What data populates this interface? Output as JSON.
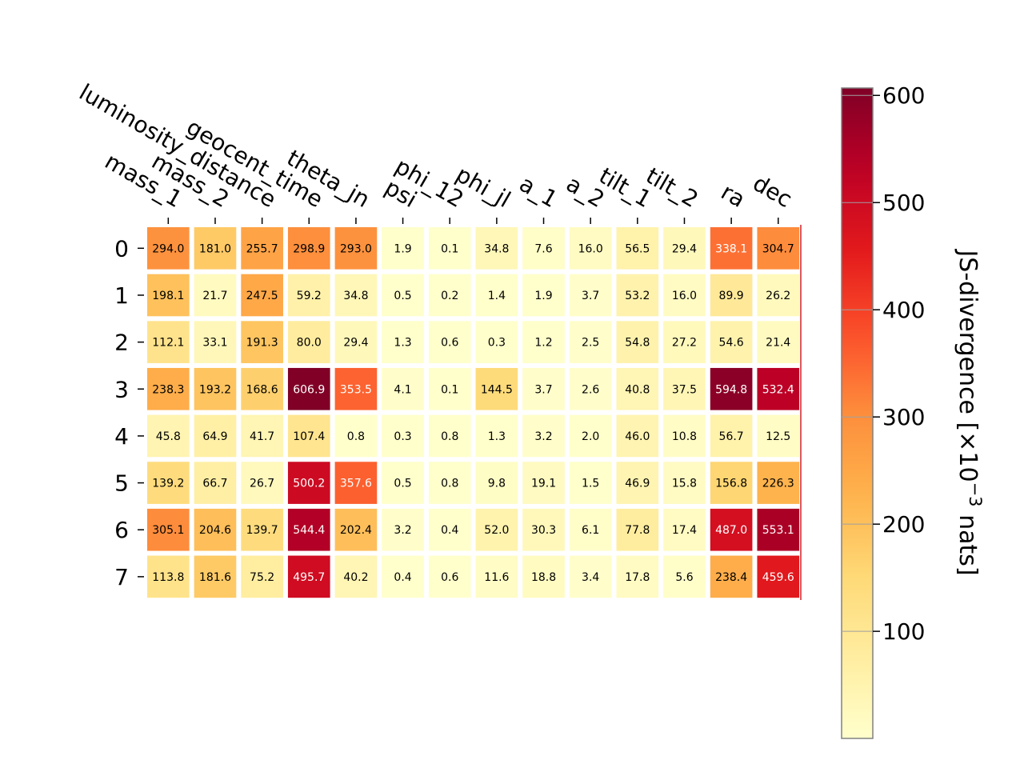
{
  "chart_data": {
    "type": "heatmap",
    "title": "",
    "xlabel": "",
    "ylabel": "",
    "x_categories": [
      "mass_1",
      "mass_2",
      "luminosity_distance",
      "geocent_time",
      "theta_jn",
      "psi",
      "phi_12",
      "phi_jl",
      "a_1",
      "a_2",
      "tilt_1",
      "tilt_2",
      "ra",
      "dec"
    ],
    "y_categories": [
      "0",
      "1",
      "2",
      "3",
      "4",
      "5",
      "6",
      "7"
    ],
    "values": [
      [
        294.0,
        181.0,
        255.7,
        298.9,
        293.0,
        1.9,
        0.1,
        34.8,
        7.6,
        16.0,
        56.5,
        29.4,
        338.1,
        304.7
      ],
      [
        198.1,
        21.7,
        247.5,
        59.2,
        34.8,
        0.5,
        0.2,
        1.4,
        1.9,
        3.7,
        53.2,
        16.0,
        89.9,
        26.2
      ],
      [
        112.1,
        33.1,
        191.3,
        80.0,
        29.4,
        1.3,
        0.6,
        0.3,
        1.2,
        2.5,
        54.8,
        27.2,
        54.6,
        21.4
      ],
      [
        238.3,
        193.2,
        168.6,
        606.9,
        353.5,
        4.1,
        0.1,
        144.5,
        3.7,
        2.6,
        40.8,
        37.5,
        594.8,
        532.4
      ],
      [
        45.8,
        64.9,
        41.7,
        107.4,
        0.8,
        0.3,
        0.8,
        1.3,
        3.2,
        2.0,
        46.0,
        10.8,
        56.7,
        12.5
      ],
      [
        139.2,
        66.7,
        26.7,
        500.2,
        357.6,
        0.5,
        0.8,
        9.8,
        19.1,
        1.5,
        46.9,
        15.8,
        156.8,
        226.3
      ],
      [
        305.1,
        204.6,
        139.7,
        544.4,
        202.4,
        3.2,
        0.4,
        52.0,
        30.3,
        6.1,
        77.8,
        17.4,
        487.0,
        553.1
      ],
      [
        113.8,
        181.6,
        75.2,
        495.7,
        40.2,
        0.4,
        0.6,
        11.6,
        18.8,
        3.4,
        17.8,
        5.6,
        238.4,
        459.6
      ]
    ],
    "colormap": "YlOrRd",
    "colorbar": {
      "label": "JS-divergence [×10",
      "label_exponent": "−3",
      "label_suffix": " nats]",
      "ticks": [
        100,
        200,
        300,
        400,
        500,
        600
      ],
      "range": [
        0.1,
        606.9
      ]
    },
    "grid": false
  }
}
